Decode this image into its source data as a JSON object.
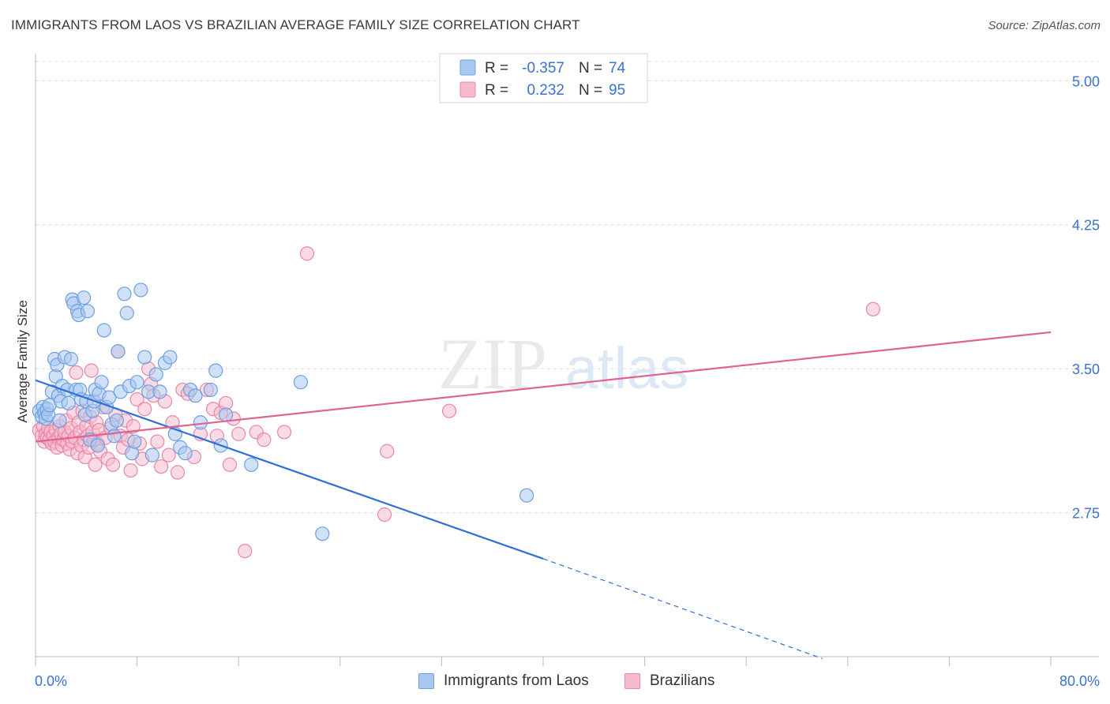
{
  "header": {
    "title": "IMMIGRANTS FROM LAOS VS BRAZILIAN AVERAGE FAMILY SIZE CORRELATION CHART",
    "source": "Source: ZipAtlas.com"
  },
  "watermark": {
    "zip": "ZIP",
    "atlas": "atlas"
  },
  "colors": {
    "blue_fill": "#a9c8f0",
    "blue_stroke": "#6d9fe0",
    "blue_line": "#2f6fd6",
    "pink_fill": "#f6bccd",
    "pink_stroke": "#ea86a6",
    "pink_line": "#e0638f",
    "value_text": "#3a72cf",
    "grid": "#dcdcdc"
  },
  "legend": {
    "rows": [
      {
        "r_label": "R =",
        "r_value": "-0.357",
        "n_label": "N =",
        "n_value": "74"
      },
      {
        "r_label": "R =",
        "r_value": "0.232",
        "n_label": "N =",
        "n_value": "95"
      }
    ]
  },
  "chart_data": {
    "type": "scatter",
    "title": "IMMIGRANTS FROM LAOS VS BRAZILIAN AVERAGE FAMILY SIZE CORRELATION CHART",
    "xlabel": "",
    "ylabel": "Average Family Size",
    "xlim": [
      0,
      80
    ],
    "ylim": [
      2.0,
      5.1
    ],
    "x_tick_labels": [
      "0.0%",
      "80.0%"
    ],
    "y_ticks": [
      2.75,
      3.5,
      4.25,
      5.0
    ],
    "y_tick_labels": [
      "2.75",
      "3.50",
      "4.25",
      "5.00"
    ],
    "grid": true,
    "legend_position": "top-center",
    "series": [
      {
        "name": "Immigrants from Laos",
        "r": -0.357,
        "n": 74,
        "trend": {
          "x0": 0,
          "y0": 3.44,
          "x1": 40,
          "y1": 2.51,
          "dashed_to_x": 62,
          "dashed_to_y": 1.99
        },
        "points": [
          [
            0.3,
            3.28
          ],
          [
            0.5,
            3.25
          ],
          [
            0.6,
            3.3
          ],
          [
            0.7,
            3.27
          ],
          [
            0.8,
            3.24
          ],
          [
            0.9,
            3.29
          ],
          [
            1.0,
            3.26
          ],
          [
            1.1,
            3.31
          ],
          [
            1.3,
            3.38
          ],
          [
            1.5,
            3.55
          ],
          [
            1.6,
            3.46
          ],
          [
            1.7,
            3.52
          ],
          [
            1.8,
            3.36
          ],
          [
            1.9,
            3.23
          ],
          [
            2.0,
            3.33
          ],
          [
            2.1,
            3.41
          ],
          [
            2.3,
            3.56
          ],
          [
            2.5,
            3.39
          ],
          [
            2.6,
            3.32
          ],
          [
            2.8,
            3.55
          ],
          [
            2.9,
            3.86
          ],
          [
            3.0,
            3.84
          ],
          [
            3.2,
            3.39
          ],
          [
            3.3,
            3.8
          ],
          [
            3.4,
            3.78
          ],
          [
            3.5,
            3.39
          ],
          [
            3.6,
            3.34
          ],
          [
            3.8,
            3.87
          ],
          [
            3.9,
            3.26
          ],
          [
            4.0,
            3.33
          ],
          [
            4.1,
            3.8
          ],
          [
            4.3,
            3.13
          ],
          [
            4.5,
            3.28
          ],
          [
            4.6,
            3.33
          ],
          [
            4.7,
            3.39
          ],
          [
            4.9,
            3.1
          ],
          [
            5.0,
            3.37
          ],
          [
            5.2,
            3.43
          ],
          [
            5.4,
            3.7
          ],
          [
            5.6,
            3.3
          ],
          [
            5.8,
            3.35
          ],
          [
            6.0,
            3.21
          ],
          [
            6.2,
            3.15
          ],
          [
            6.4,
            3.23
          ],
          [
            6.5,
            3.59
          ],
          [
            6.7,
            3.38
          ],
          [
            7.0,
            3.89
          ],
          [
            7.2,
            3.79
          ],
          [
            7.4,
            3.41
          ],
          [
            7.6,
            3.06
          ],
          [
            7.8,
            3.12
          ],
          [
            8.0,
            3.43
          ],
          [
            8.3,
            3.91
          ],
          [
            8.6,
            3.56
          ],
          [
            8.9,
            3.38
          ],
          [
            9.2,
            3.05
          ],
          [
            9.5,
            3.47
          ],
          [
            9.8,
            3.38
          ],
          [
            10.2,
            3.53
          ],
          [
            10.6,
            3.56
          ],
          [
            11.0,
            3.16
          ],
          [
            11.4,
            3.09
          ],
          [
            11.8,
            3.06
          ],
          [
            12.2,
            3.39
          ],
          [
            12.6,
            3.36
          ],
          [
            13.0,
            3.22
          ],
          [
            13.8,
            3.39
          ],
          [
            14.2,
            3.49
          ],
          [
            14.6,
            3.1
          ],
          [
            15.0,
            3.26
          ],
          [
            17.0,
            3.0
          ],
          [
            22.6,
            2.64
          ],
          [
            20.9,
            3.43
          ],
          [
            38.7,
            2.84
          ]
        ]
      },
      {
        "name": "Brazilians",
        "r": 0.232,
        "n": 95,
        "trend": {
          "x0": 0,
          "y0": 3.12,
          "x1": 80,
          "y1": 3.69
        },
        "points": [
          [
            0.3,
            3.18
          ],
          [
            0.5,
            3.15
          ],
          [
            0.6,
            3.2
          ],
          [
            0.7,
            3.12
          ],
          [
            0.8,
            3.16
          ],
          [
            0.9,
            3.14
          ],
          [
            1.0,
            3.19
          ],
          [
            1.1,
            3.13
          ],
          [
            1.2,
            3.17
          ],
          [
            1.3,
            3.11
          ],
          [
            1.4,
            3.15
          ],
          [
            1.5,
            3.12
          ],
          [
            1.6,
            3.18
          ],
          [
            1.7,
            3.09
          ],
          [
            1.8,
            3.14
          ],
          [
            1.9,
            3.2
          ],
          [
            2.0,
            3.16
          ],
          [
            2.1,
            3.1
          ],
          [
            2.2,
            3.13
          ],
          [
            2.3,
            3.17
          ],
          [
            2.4,
            3.23
          ],
          [
            2.5,
            3.11
          ],
          [
            2.6,
            3.15
          ],
          [
            2.7,
            3.08
          ],
          [
            2.8,
            3.19
          ],
          [
            2.9,
            3.12
          ],
          [
            3.0,
            3.27
          ],
          [
            3.1,
            3.14
          ],
          [
            3.2,
            3.48
          ],
          [
            3.3,
            3.06
          ],
          [
            3.4,
            3.22
          ],
          [
            3.5,
            3.17
          ],
          [
            3.6,
            3.1
          ],
          [
            3.7,
            3.28
          ],
          [
            3.8,
            3.13
          ],
          [
            3.9,
            3.04
          ],
          [
            4.0,
            3.2
          ],
          [
            4.1,
            3.15
          ],
          [
            4.2,
            3.09
          ],
          [
            4.3,
            3.25
          ],
          [
            4.4,
            3.49
          ],
          [
            4.5,
            3.17
          ],
          [
            4.6,
            3.13
          ],
          [
            4.7,
            3.0
          ],
          [
            4.8,
            3.22
          ],
          [
            4.9,
            3.11
          ],
          [
            5.0,
            3.18
          ],
          [
            5.1,
            3.07
          ],
          [
            5.3,
            3.3
          ],
          [
            5.5,
            3.14
          ],
          [
            5.7,
            3.03
          ],
          [
            5.9,
            3.19
          ],
          [
            6.1,
            3.0
          ],
          [
            6.3,
            3.26
          ],
          [
            6.5,
            3.59
          ],
          [
            6.7,
            3.15
          ],
          [
            6.9,
            3.09
          ],
          [
            7.1,
            3.23
          ],
          [
            7.3,
            3.13
          ],
          [
            7.5,
            2.97
          ],
          [
            7.7,
            3.2
          ],
          [
            8.0,
            3.34
          ],
          [
            8.2,
            3.11
          ],
          [
            8.4,
            3.03
          ],
          [
            8.6,
            3.29
          ],
          [
            8.9,
            3.5
          ],
          [
            9.1,
            3.42
          ],
          [
            9.3,
            3.36
          ],
          [
            9.6,
            3.12
          ],
          [
            9.9,
            2.99
          ],
          [
            10.2,
            3.33
          ],
          [
            10.5,
            3.05
          ],
          [
            10.8,
            3.22
          ],
          [
            11.2,
            2.96
          ],
          [
            11.6,
            3.39
          ],
          [
            12.0,
            3.37
          ],
          [
            12.5,
            3.04
          ],
          [
            13.0,
            3.16
          ],
          [
            13.5,
            3.39
          ],
          [
            14.0,
            3.29
          ],
          [
            14.3,
            3.15
          ],
          [
            14.6,
            3.27
          ],
          [
            15.0,
            3.32
          ],
          [
            15.3,
            3.0
          ],
          [
            15.6,
            3.24
          ],
          [
            16.0,
            3.16
          ],
          [
            16.5,
            2.55
          ],
          [
            17.4,
            3.17
          ],
          [
            18.0,
            3.13
          ],
          [
            19.6,
            3.17
          ],
          [
            21.4,
            4.1
          ],
          [
            27.5,
            2.74
          ],
          [
            27.7,
            3.07
          ],
          [
            32.6,
            3.28
          ],
          [
            66.0,
            3.81
          ]
        ]
      }
    ]
  }
}
